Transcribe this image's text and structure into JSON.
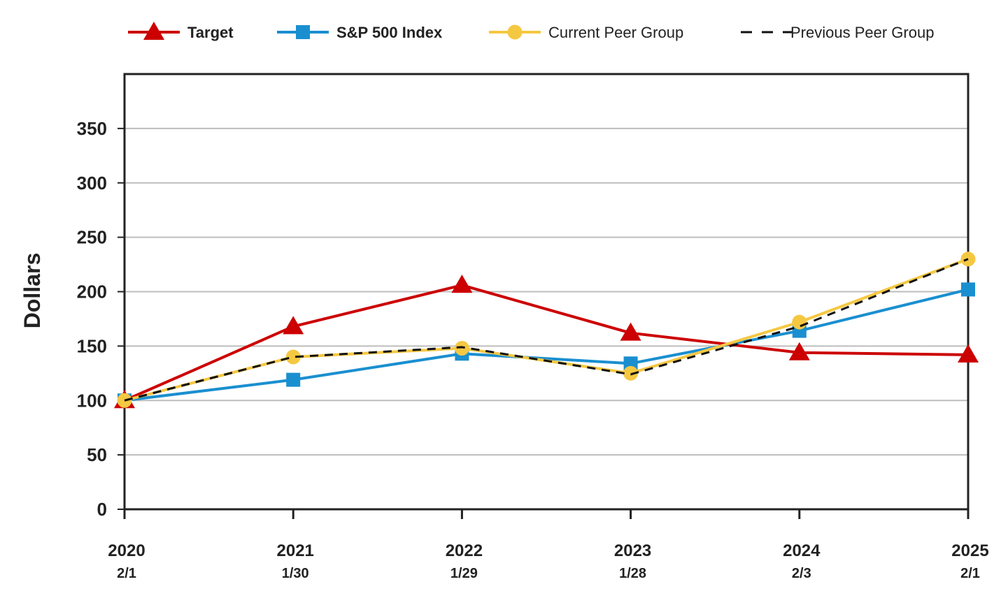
{
  "chart_data": {
    "type": "line",
    "ylabel": "Dollars",
    "ylim": [
      0,
      400
    ],
    "yticks": [
      "0",
      "50",
      "100",
      "150",
      "200",
      "250",
      "300",
      "350"
    ],
    "grid": true,
    "legend_position": "top",
    "categories": [
      {
        "year": "2020",
        "date": "2/1"
      },
      {
        "year": "2021",
        "date": "1/30"
      },
      {
        "year": "2022",
        "date": "1/29"
      },
      {
        "year": "2023",
        "date": "1/28"
      },
      {
        "year": "2024",
        "date": "2/3"
      },
      {
        "year": "2025",
        "date": "2/1"
      }
    ],
    "series": [
      {
        "name": "Target",
        "color": "#cc0000",
        "marker": "triangle",
        "style": "solid",
        "bold_label": true,
        "values": [
          100,
          168,
          206,
          162,
          144,
          142
        ]
      },
      {
        "name": "S&P 500 Index",
        "color": "#1a8fd0",
        "marker": "square",
        "style": "solid",
        "bold_label": true,
        "values": [
          100,
          119,
          143,
          134,
          164,
          202
        ]
      },
      {
        "name": "Current Peer Group",
        "color": "#f5c842",
        "marker": "circle",
        "style": "solid",
        "bold_label": false,
        "values": [
          100,
          140,
          148,
          125,
          172,
          230
        ]
      },
      {
        "name": "Previous Peer Group",
        "color": "#111111",
        "marker": "none",
        "style": "dashed",
        "bold_label": false,
        "values": [
          100,
          140,
          149,
          124,
          168,
          230
        ]
      }
    ]
  }
}
